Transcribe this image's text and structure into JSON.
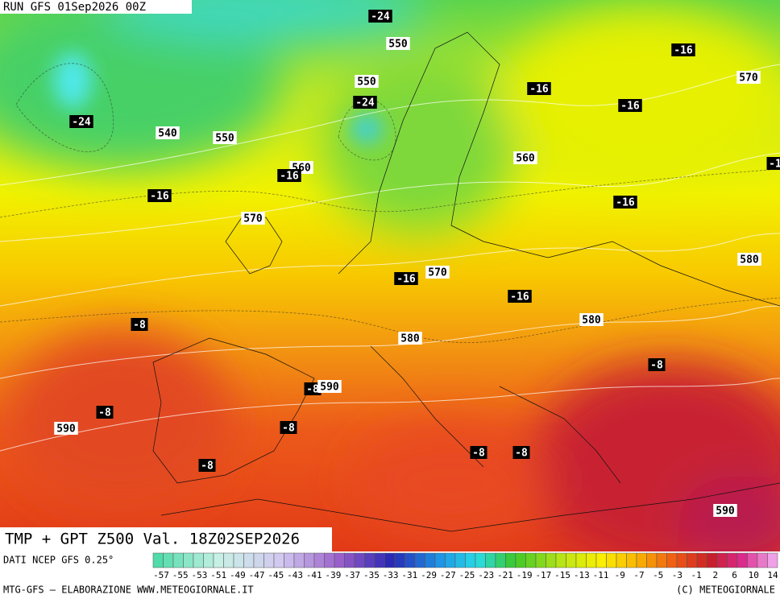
{
  "header": {
    "run": "RUN GFS 01Sep2026 00Z"
  },
  "title": "TMP + GPT Z500 Val. 18Z02SEP2026",
  "source": "DATI NCEP GFS 0.25°",
  "footer": {
    "left": "MTG-GFS — ELABORAZIONE WWW.METEOGIORNALE.IT",
    "right": "(C) METEOGIORNALE"
  },
  "scale_labels": [
    "-57",
    "-55",
    "-53",
    "-51",
    "-49",
    "-47",
    "-45",
    "-43",
    "-41",
    "-39",
    "-37",
    "-35",
    "-33",
    "-31",
    "-29",
    "-27",
    "-25",
    "-23",
    "-21",
    "-19",
    "-17",
    "-15",
    "-13",
    "-11",
    "-9",
    "-7",
    "-5",
    "-3",
    "-1",
    "2",
    "6",
    "10",
    "14"
  ],
  "map_labels": [
    "-24",
    "550",
    "550",
    "-24",
    "-24",
    "540",
    "550",
    "-16",
    "-16",
    "-16",
    "570",
    "560",
    "-1",
    "560",
    "-16",
    "-16",
    "-16",
    "570",
    "580",
    "-16",
    "570",
    "-16",
    "580",
    "-8",
    "580",
    "-8",
    "-8",
    "590",
    "-8",
    "590",
    "-8",
    "-8",
    "-8",
    "-8",
    "590"
  ]
}
